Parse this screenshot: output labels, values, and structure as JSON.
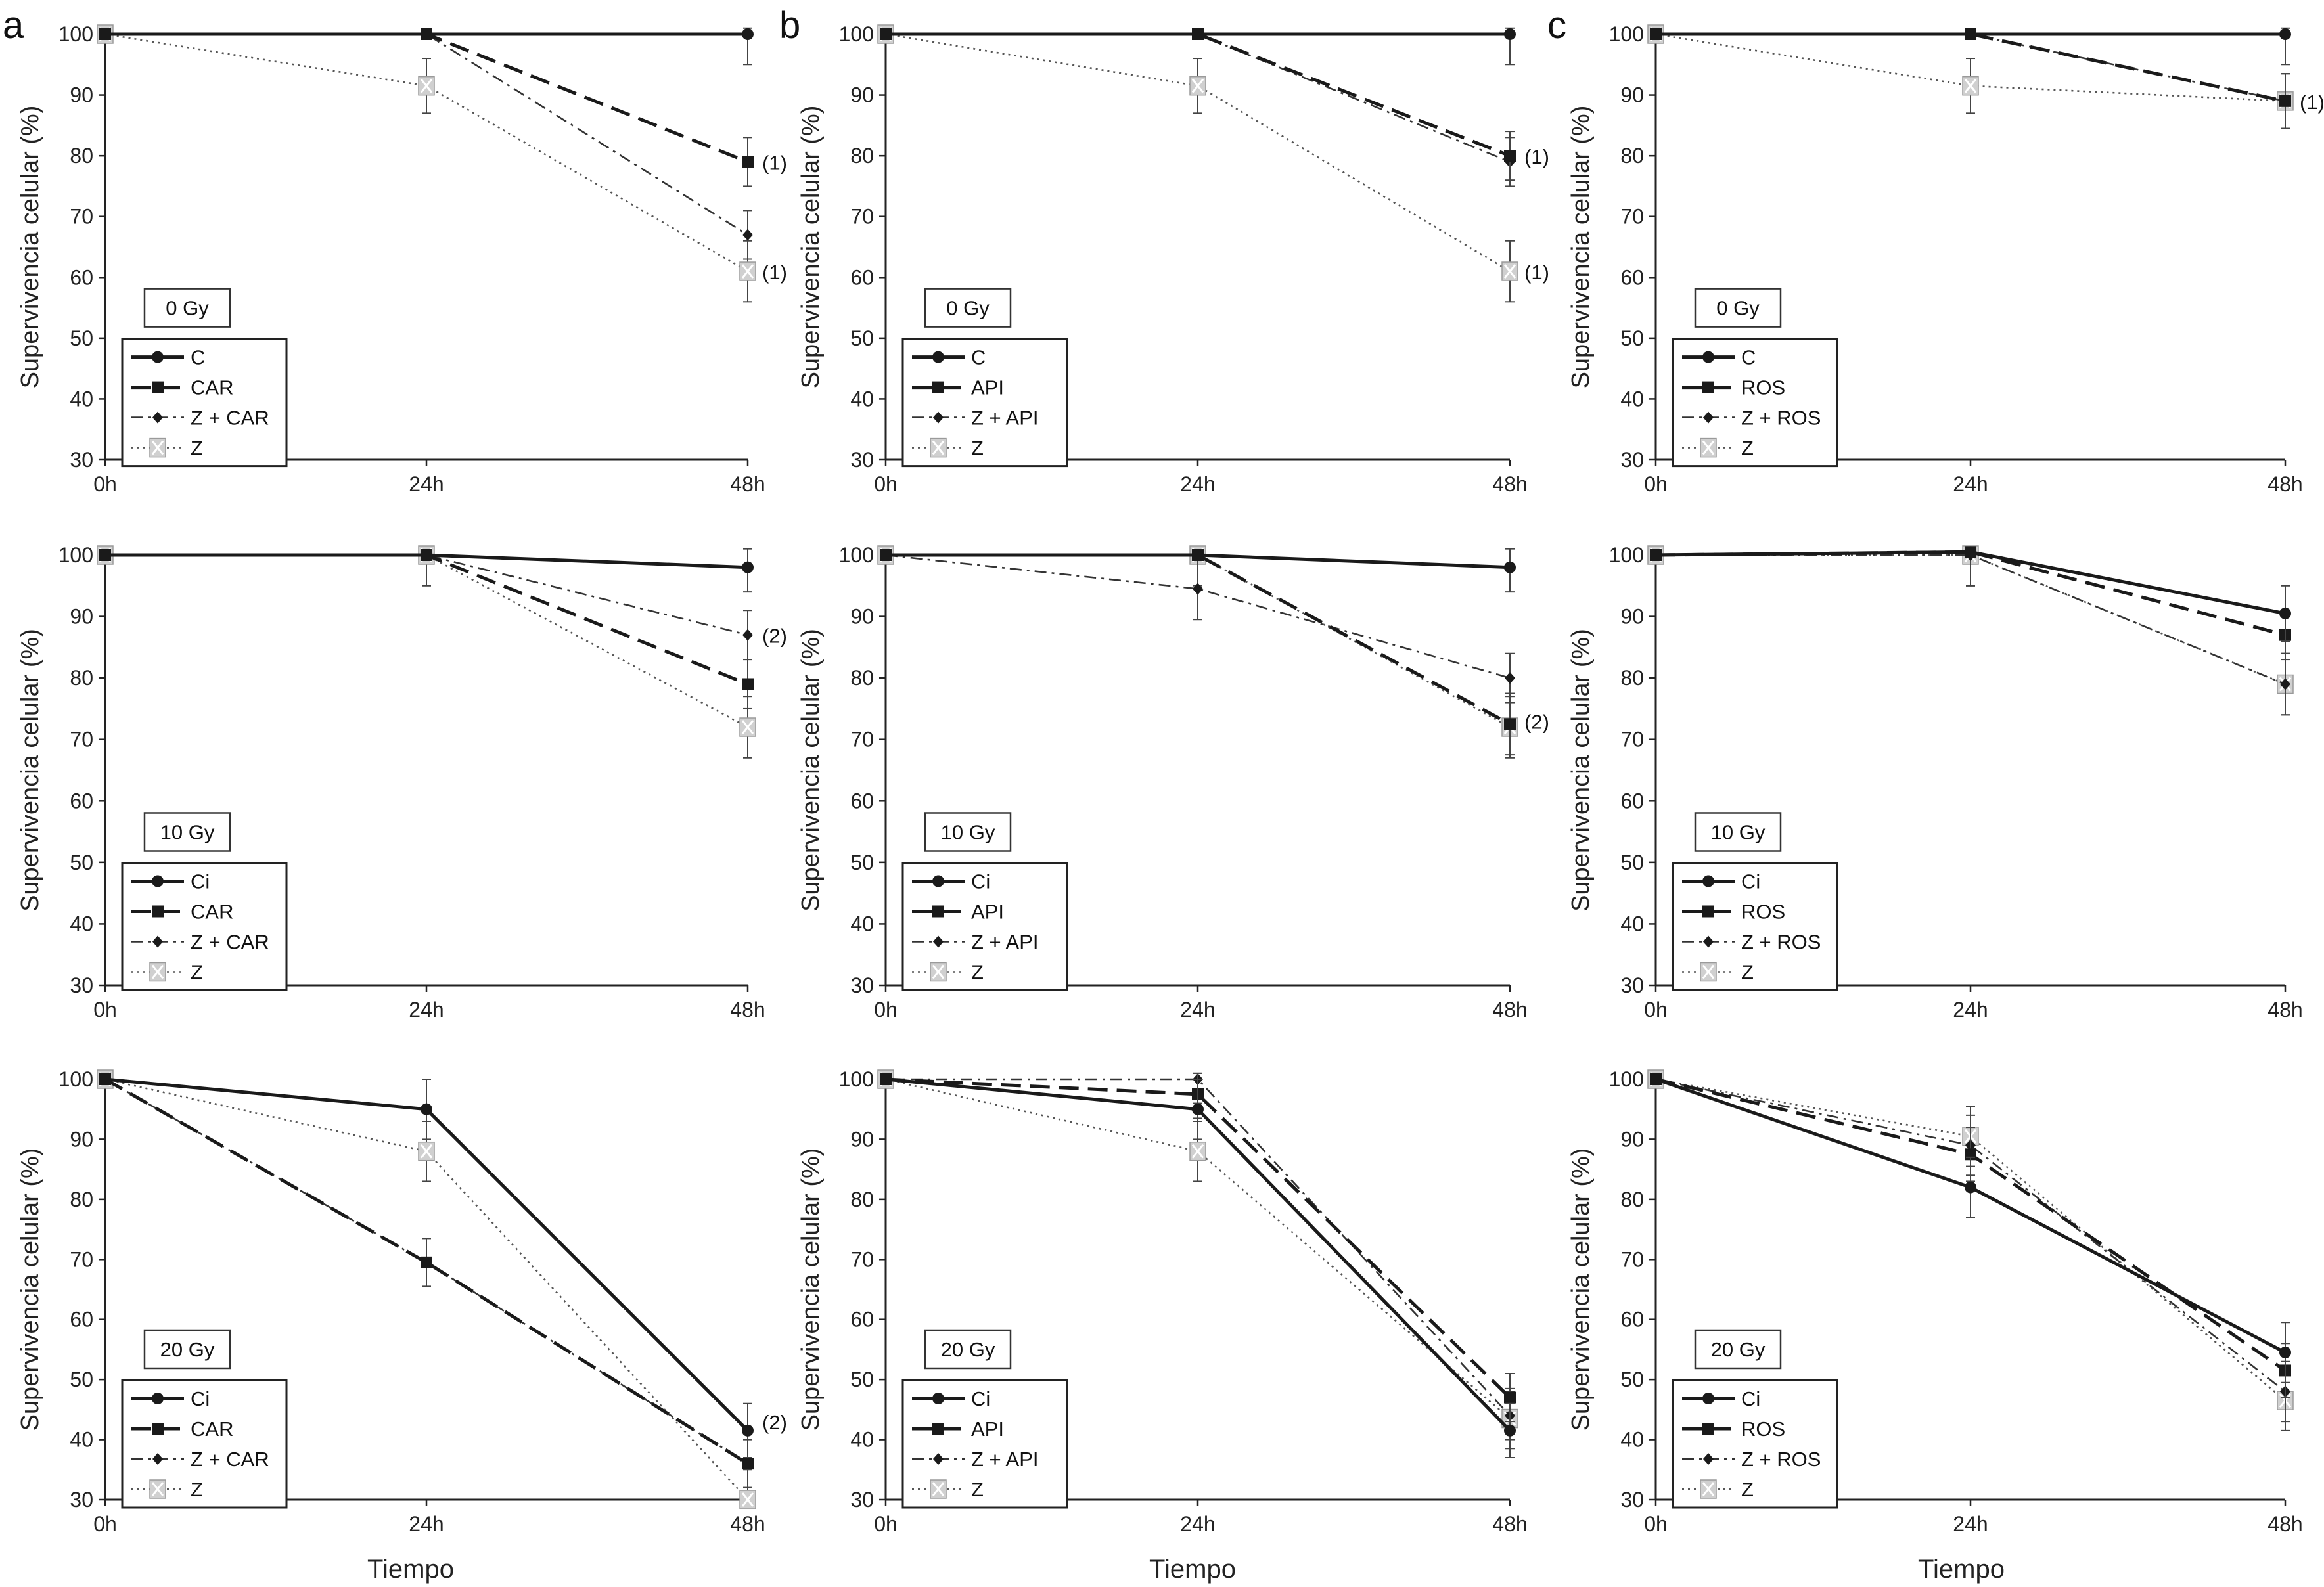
{
  "figure": {
    "panel_letters": [
      "a",
      "b",
      "c"
    ],
    "xlabel_bottom": "Tiempo"
  },
  "chart_data": [
    {
      "type": "line",
      "panel": "a",
      "dose": "0 Gy",
      "ylabel": "Supervivencia celular (%)",
      "x": [
        "0h",
        "24h",
        "48h"
      ],
      "ylim": [
        30,
        100
      ],
      "yticks": [
        30,
        40,
        50,
        60,
        70,
        80,
        90,
        100
      ],
      "series": [
        {
          "name": "C",
          "style": "solid",
          "values": [
            100,
            100,
            100
          ],
          "err": [
            0,
            0,
            5
          ]
        },
        {
          "name": "CAR",
          "style": "dash",
          "values": [
            100,
            100,
            79
          ],
          "err": [
            0,
            0,
            4
          ]
        },
        {
          "name": "Z + CAR",
          "style": "dashdot",
          "values": [
            100,
            100,
            67
          ],
          "err": [
            0,
            0,
            4
          ]
        },
        {
          "name": "Z",
          "style": "dot",
          "values": [
            100,
            91.5,
            61
          ],
          "err": [
            0,
            4.5,
            5
          ]
        }
      ],
      "annotations": [
        {
          "text": "(1)",
          "x": "48h",
          "y": 79
        },
        {
          "text": "(1)",
          "x": "48h",
          "y": 61
        }
      ]
    },
    {
      "type": "line",
      "panel": "b",
      "dose": "0 Gy",
      "ylabel": "Supervivencia celular (%)",
      "x": [
        "0h",
        "24h",
        "48h"
      ],
      "ylim": [
        30,
        100
      ],
      "yticks": [
        30,
        40,
        50,
        60,
        70,
        80,
        90,
        100
      ],
      "series": [
        {
          "name": "C",
          "style": "solid",
          "values": [
            100,
            100,
            100
          ],
          "err": [
            0,
            0,
            5
          ]
        },
        {
          "name": "API",
          "style": "dash",
          "values": [
            100,
            100,
            80
          ],
          "err": [
            0,
            0,
            4
          ]
        },
        {
          "name": "Z + API",
          "style": "dashdot",
          "values": [
            100,
            100,
            79
          ],
          "err": [
            0,
            0,
            4
          ]
        },
        {
          "name": "Z",
          "style": "dot",
          "values": [
            100,
            91.5,
            61
          ],
          "err": [
            0,
            4.5,
            5
          ]
        }
      ],
      "annotations": [
        {
          "text": "(1)",
          "x": "48h",
          "y": 80
        },
        {
          "text": "(1)",
          "x": "48h",
          "y": 61
        }
      ]
    },
    {
      "type": "line",
      "panel": "c",
      "dose": "0 Gy",
      "ylabel": "Supervivencia celular (%)",
      "x": [
        "0h",
        "24h",
        "48h"
      ],
      "ylim": [
        30,
        100
      ],
      "yticks": [
        30,
        40,
        50,
        60,
        70,
        80,
        90,
        100
      ],
      "series": [
        {
          "name": "C",
          "style": "solid",
          "values": [
            100,
            100,
            100
          ],
          "err": [
            0,
            0,
            5
          ]
        },
        {
          "name": "ROS",
          "style": "dash",
          "values": [
            100,
            100,
            89
          ],
          "err": [
            0,
            0,
            4.5
          ]
        },
        {
          "name": "Z + ROS",
          "style": "dashdot",
          "values": [
            100,
            100,
            89
          ],
          "err": [
            0,
            0,
            4.5
          ]
        },
        {
          "name": "Z",
          "style": "dot",
          "values": [
            100,
            91.5,
            89
          ],
          "err": [
            0,
            4.5,
            4.5
          ]
        }
      ],
      "annotations": [
        {
          "text": "(1)",
          "x": "48h",
          "y": 89
        }
      ]
    },
    {
      "type": "line",
      "panel": "a",
      "dose": "10 Gy",
      "ylabel": "Supervivencia celular (%)",
      "x": [
        "0h",
        "24h",
        "48h"
      ],
      "ylim": [
        30,
        100
      ],
      "yticks": [
        30,
        40,
        50,
        60,
        70,
        80,
        90,
        100
      ],
      "series": [
        {
          "name": "Ci",
          "style": "solid",
          "values": [
            100,
            100,
            98
          ],
          "err": [
            0,
            0,
            4
          ]
        },
        {
          "name": "CAR",
          "style": "dash",
          "values": [
            100,
            100,
            79
          ],
          "err": [
            0,
            0,
            4
          ]
        },
        {
          "name": "Z + CAR",
          "style": "dashdot",
          "values": [
            100,
            100,
            87
          ],
          "err": [
            0,
            0,
            4
          ]
        },
        {
          "name": "Z",
          "style": "dot",
          "values": [
            100,
            100,
            72
          ],
          "err": [
            0,
            5,
            5
          ]
        }
      ],
      "annotations": [
        {
          "text": "(2)",
          "x": "48h",
          "y": 87
        }
      ]
    },
    {
      "type": "line",
      "panel": "b",
      "dose": "10 Gy",
      "ylabel": "Supervivencia celular (%)",
      "x": [
        "0h",
        "24h",
        "48h"
      ],
      "ylim": [
        30,
        100
      ],
      "yticks": [
        30,
        40,
        50,
        60,
        70,
        80,
        90,
        100
      ],
      "series": [
        {
          "name": "Ci",
          "style": "solid",
          "values": [
            100,
            100,
            98
          ],
          "err": [
            0,
            0,
            4
          ]
        },
        {
          "name": "API",
          "style": "dash",
          "values": [
            100,
            100,
            72.5
          ],
          "err": [
            0,
            0,
            5
          ]
        },
        {
          "name": "Z + API",
          "style": "dashdot",
          "values": [
            100,
            94.5,
            80
          ],
          "err": [
            0,
            5,
            4
          ]
        },
        {
          "name": "Z",
          "style": "dot",
          "values": [
            100,
            100,
            72
          ],
          "err": [
            0,
            5,
            5
          ]
        }
      ],
      "annotations": [
        {
          "text": "(2)",
          "x": "48h",
          "y": 73
        }
      ]
    },
    {
      "type": "line",
      "panel": "c",
      "dose": "10 Gy",
      "ylabel": "Supervivencia celular (%)",
      "x": [
        "0h",
        "24h",
        "48h"
      ],
      "ylim": [
        30,
        100
      ],
      "yticks": [
        30,
        40,
        50,
        60,
        70,
        80,
        90,
        100
      ],
      "series": [
        {
          "name": "Ci",
          "style": "solid",
          "values": [
            100,
            100.5,
            90.5
          ],
          "err": [
            0,
            0,
            4.5
          ]
        },
        {
          "name": "ROS",
          "style": "dash",
          "values": [
            100,
            100.5,
            87
          ],
          "err": [
            0,
            0,
            4
          ]
        },
        {
          "name": "Z + ROS",
          "style": "dashdot",
          "values": [
            100,
            100,
            79
          ],
          "err": [
            0,
            5,
            5
          ]
        },
        {
          "name": "Z",
          "style": "dot",
          "values": [
            100,
            100,
            79
          ],
          "err": [
            0,
            5,
            5
          ]
        }
      ],
      "annotations": []
    },
    {
      "type": "line",
      "panel": "a",
      "dose": "20 Gy",
      "ylabel": "Supervivencia celular (%)",
      "x": [
        "0h",
        "24h",
        "48h"
      ],
      "ylim": [
        30,
        100
      ],
      "yticks": [
        30,
        40,
        50,
        60,
        70,
        80,
        90,
        100
      ],
      "series": [
        {
          "name": "Ci",
          "style": "solid",
          "values": [
            100,
            95,
            41.5
          ],
          "err": [
            0,
            5,
            4.5
          ]
        },
        {
          "name": "CAR",
          "style": "dash",
          "values": [
            100,
            69.5,
            36
          ],
          "err": [
            0,
            4,
            4
          ]
        },
        {
          "name": "Z + CAR",
          "style": "dashdot",
          "values": [
            100,
            69.5,
            36
          ],
          "err": [
            0,
            4,
            4
          ]
        },
        {
          "name": "Z",
          "style": "dot",
          "values": [
            100,
            88,
            30
          ],
          "err": [
            0,
            5,
            5
          ]
        }
      ],
      "annotations": [
        {
          "text": "(2)",
          "x": "48h",
          "y": 43
        }
      ]
    },
    {
      "type": "line",
      "panel": "b",
      "dose": "20 Gy",
      "ylabel": "Supervivencia celular (%)",
      "x": [
        "0h",
        "24h",
        "48h"
      ],
      "ylim": [
        30,
        100
      ],
      "yticks": [
        30,
        40,
        50,
        60,
        70,
        80,
        90,
        100
      ],
      "series": [
        {
          "name": "Ci",
          "style": "solid",
          "values": [
            100,
            95,
            41.5
          ],
          "err": [
            0,
            5,
            4.5
          ]
        },
        {
          "name": "API",
          "style": "dash",
          "values": [
            100,
            97.5,
            47
          ],
          "err": [
            0,
            4,
            4
          ]
        },
        {
          "name": "Z + API",
          "style": "dashdot",
          "values": [
            100,
            100,
            44
          ],
          "err": [
            0,
            4,
            4
          ]
        },
        {
          "name": "Z",
          "style": "dot",
          "values": [
            100,
            88,
            43.5
          ],
          "err": [
            0,
            5,
            5
          ]
        }
      ],
      "annotations": []
    },
    {
      "type": "line",
      "panel": "c",
      "dose": "20 Gy",
      "ylabel": "Supervivencia celular (%)",
      "x": [
        "0h",
        "24h",
        "48h"
      ],
      "ylim": [
        30,
        100
      ],
      "yticks": [
        30,
        40,
        50,
        60,
        70,
        80,
        90,
        100
      ],
      "series": [
        {
          "name": "Ci",
          "style": "solid",
          "values": [
            100,
            82,
            54.5
          ],
          "err": [
            0,
            5,
            5
          ]
        },
        {
          "name": "ROS",
          "style": "dash",
          "values": [
            100,
            87.5,
            51.5
          ],
          "err": [
            0,
            4.5,
            4.5
          ]
        },
        {
          "name": "Z + ROS",
          "style": "dashdot",
          "values": [
            100,
            89,
            48
          ],
          "err": [
            0,
            5,
            5
          ]
        },
        {
          "name": "Z",
          "style": "dot",
          "values": [
            100,
            90.5,
            46.5
          ],
          "err": [
            0,
            5,
            5
          ]
        }
      ],
      "annotations": []
    }
  ]
}
